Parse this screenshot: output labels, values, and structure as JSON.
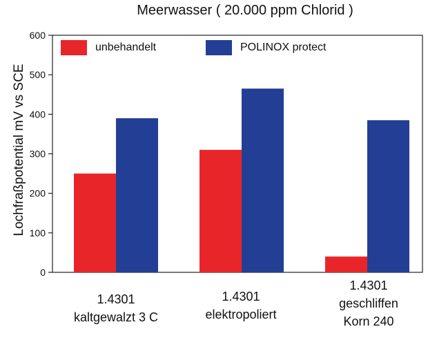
{
  "chart_data": {
    "type": "bar",
    "title": "Meerwasser ( 20.000 ppm Chlorid )",
    "ylabel": "Lochfraßpotential mV vs SCE",
    "xlabel": "",
    "ylim": [
      0,
      600
    ],
    "yticks": [
      0,
      100,
      200,
      300,
      400,
      500,
      600
    ],
    "grid": false,
    "legend_position": "top",
    "categories": [
      [
        "1.4301",
        "kaltgewalzt 3 C"
      ],
      [
        "1.4301",
        "elektropoliert"
      ],
      [
        "1.4301",
        "geschliffen",
        "Korn 240"
      ]
    ],
    "series": [
      {
        "name": "unbehandelt",
        "color": "#e8262a",
        "values": [
          250,
          310,
          40
        ]
      },
      {
        "name": "POLINOX protect",
        "color": "#233f95",
        "values": [
          390,
          465,
          385
        ]
      }
    ]
  }
}
